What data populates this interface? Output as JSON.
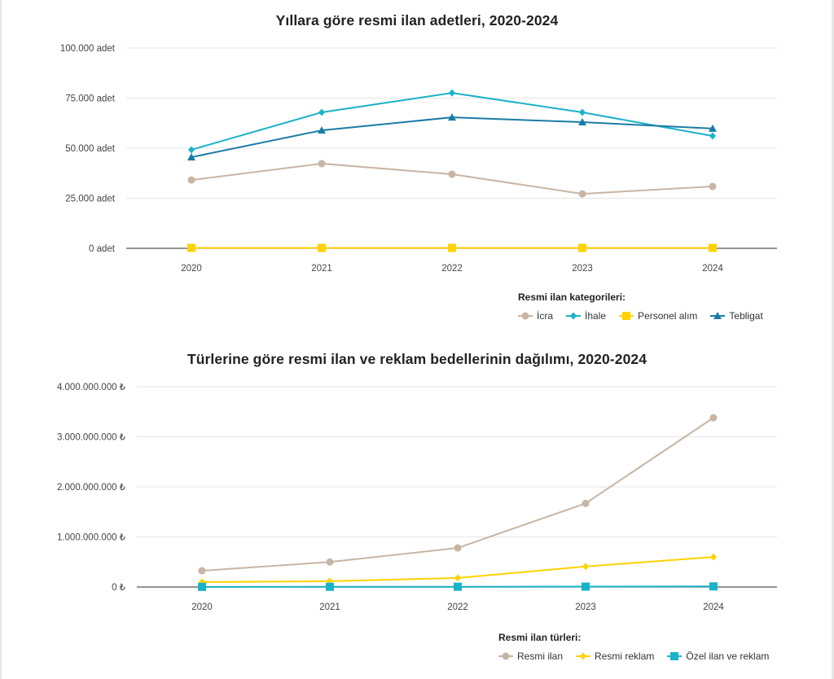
{
  "chart_data": [
    {
      "type": "line",
      "title": "Yıllara göre resmi ilan adetleri, 2020-2024",
      "xlabel": "",
      "ylabel": "",
      "x": [
        "2020",
        "2021",
        "2022",
        "2023",
        "2024"
      ],
      "ylim": [
        0,
        100000
      ],
      "yticks": [
        0,
        25000,
        50000,
        75000,
        100000
      ],
      "ytick_labels": [
        "0 adet",
        "25.000 adet",
        "50.000 adet",
        "75.000 adet",
        "100.000 adet"
      ],
      "grid": true,
      "legend_title": "Resmi ilan kategorileri:",
      "legend_position": "bottom-right",
      "series": [
        {
          "name": "İcra",
          "color": "#c8b5a3",
          "marker": "circle",
          "values": [
            34100,
            42300,
            37000,
            27200,
            30900
          ]
        },
        {
          "name": "İhale",
          "color": "#1ab2c8",
          "marker": "diamond",
          "values": [
            49200,
            67900,
            77600,
            67900,
            56100
          ]
        },
        {
          "name": "Personel alım",
          "color": "#ffd200",
          "marker": "square",
          "values": [
            200,
            200,
            200,
            200,
            200
          ]
        },
        {
          "name": "Tebligat",
          "color": "#1a7ba6",
          "marker": "triangle",
          "values": [
            45500,
            58900,
            65400,
            63000,
            59800
          ]
        }
      ]
    },
    {
      "type": "line",
      "title": "Türlerine göre resmi ilan ve reklam bedellerinin dağılımı, 2020-2024",
      "xlabel": "",
      "ylabel": "",
      "x": [
        "2020",
        "2021",
        "2022",
        "2023",
        "2024"
      ],
      "ylim": [
        0,
        4000000000
      ],
      "yticks": [
        0,
        1000000000,
        2000000000,
        3000000000,
        4000000000
      ],
      "ytick_labels": [
        "0 ₺",
        "1.000.000.000 ₺",
        "2.000.000.000 ₺",
        "3.000.000.000 ₺",
        "4.000.000.000 ₺"
      ],
      "grid": true,
      "legend_title": "Resmi ilan türleri:",
      "legend_position": "bottom-right",
      "series": [
        {
          "name": "Resmi ilan",
          "color": "#c8b5a3",
          "marker": "circle",
          "values": [
            325000000,
            500000000,
            780000000,
            1670000000,
            3380000000
          ]
        },
        {
          "name": "Resmi reklam",
          "color": "#ffd200",
          "marker": "diamond",
          "values": [
            100000000,
            115000000,
            180000000,
            410000000,
            600000000
          ]
        },
        {
          "name": "Özel ilan ve reklam",
          "color": "#1ab2c8",
          "marker": "square",
          "values": [
            3000000,
            4000000,
            5000000,
            8000000,
            12000000
          ]
        }
      ]
    }
  ]
}
